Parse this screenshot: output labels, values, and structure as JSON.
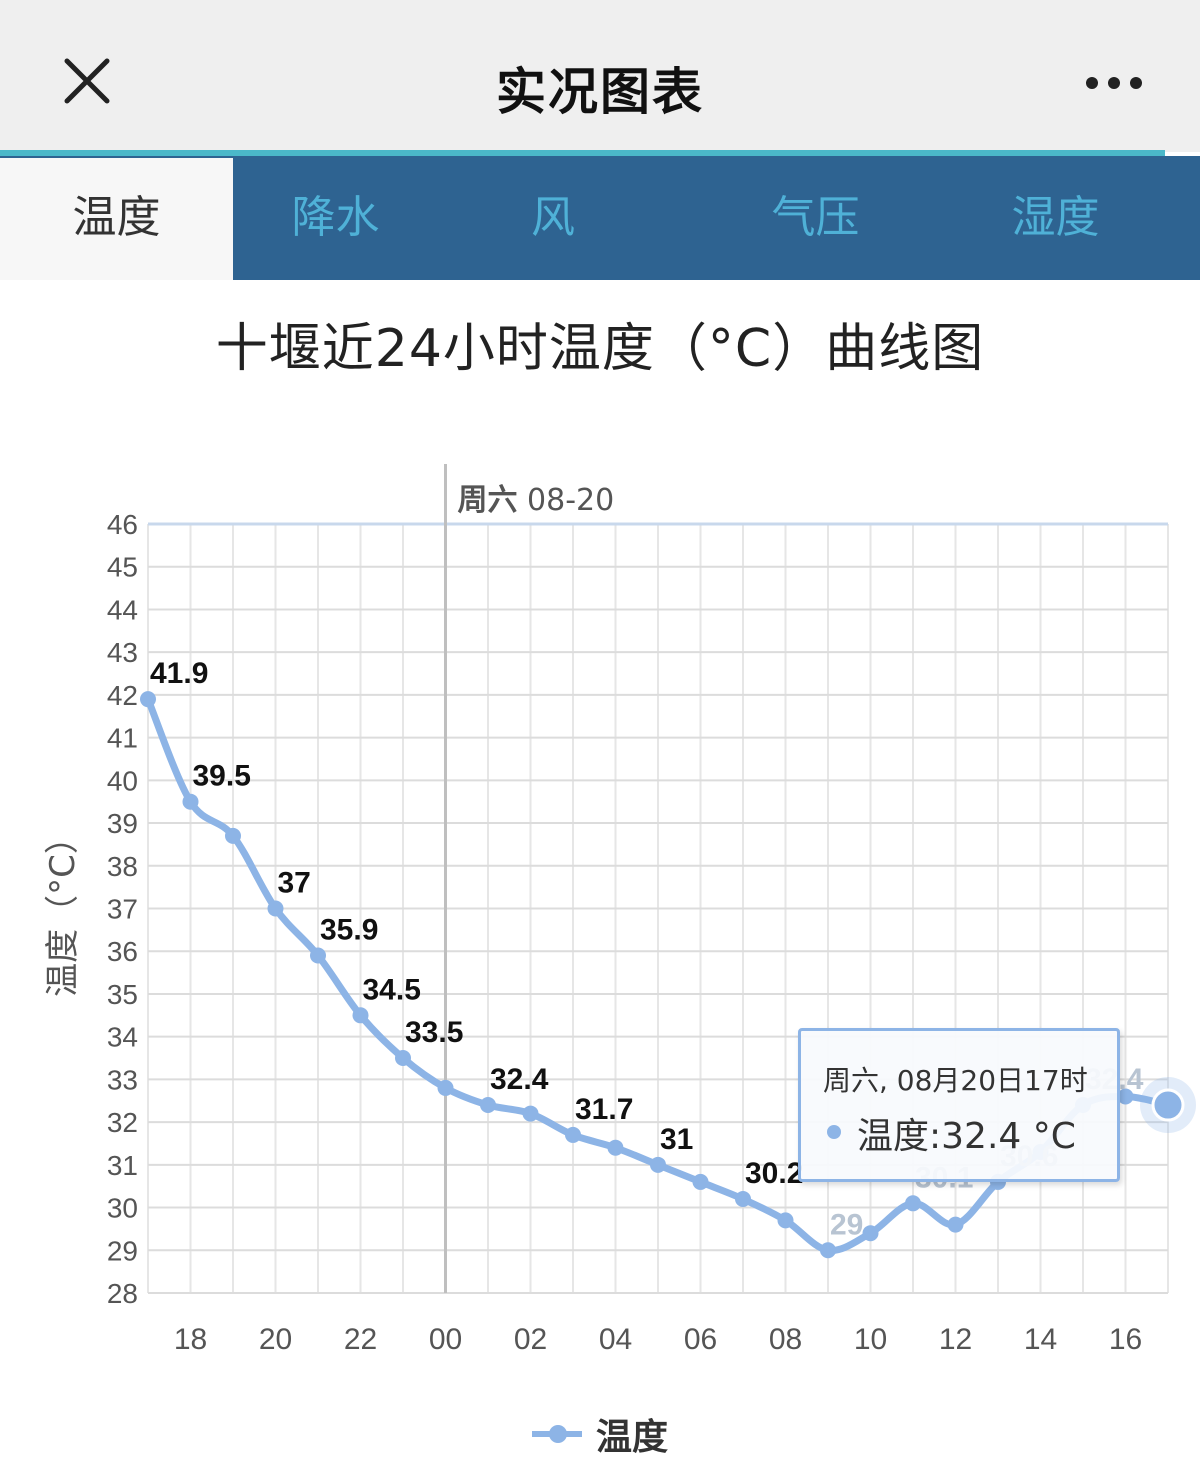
{
  "header": {
    "title": "实况图表",
    "close_icon": "close-icon",
    "more_icon": "more-icon"
  },
  "tabs": [
    {
      "label": "温度",
      "active": true
    },
    {
      "label": "降水",
      "active": false
    },
    {
      "label": "风",
      "active": false
    },
    {
      "label": "气压",
      "active": false
    },
    {
      "label": "湿度",
      "active": false
    }
  ],
  "colors": {
    "series": "#8db4e6",
    "tab_bar": "#2e6391",
    "tab_text": "#4fb1d7",
    "accent_line": "#4bb8c9"
  },
  "tooltip": {
    "header": "周六, 08月20日17时",
    "value": "温度:32.4 °C"
  },
  "legend": {
    "label": "温度"
  },
  "chart_data": {
    "type": "line",
    "title": "十堰近24小时温度（°C）曲线图",
    "ylabel": "温度（°C）",
    "xlabel": "",
    "ylim": [
      28,
      46
    ],
    "yticks": [
      28,
      29,
      30,
      31,
      32,
      33,
      34,
      35,
      36,
      37,
      38,
      39,
      40,
      41,
      42,
      43,
      44,
      45,
      46
    ],
    "x_tick_labels": [
      "18",
      "20",
      "22",
      "00",
      "02",
      "04",
      "06",
      "08",
      "10",
      "12",
      "14",
      "16"
    ],
    "day_marker": {
      "label": "周六 08-20",
      "at": "00"
    },
    "grid": true,
    "legend_position": "bottom",
    "series": [
      {
        "name": "温度",
        "x": [
          "17",
          "18",
          "19",
          "20",
          "21",
          "22",
          "23",
          "00",
          "01",
          "02",
          "03",
          "04",
          "05",
          "06",
          "07",
          "08",
          "09",
          "10",
          "11",
          "12",
          "13",
          "14",
          "15",
          "16",
          "17"
        ],
        "values": [
          41.9,
          39.5,
          38.7,
          37.0,
          35.9,
          34.5,
          33.5,
          32.8,
          32.4,
          32.2,
          31.7,
          31.4,
          31.0,
          30.6,
          30.2,
          29.7,
          29.0,
          29.4,
          30.1,
          29.6,
          30.6,
          31.3,
          32.4,
          32.6,
          32.4
        ],
        "data_labels": [
          "41.9",
          "39.5",
          "",
          "37",
          "35.9",
          "34.5",
          "33.5",
          "",
          "32.4",
          "",
          "31.7",
          "",
          "31",
          "",
          "30.2",
          "",
          "29",
          "",
          "30.1",
          "",
          "30.6",
          "",
          "32.4",
          "",
          ""
        ]
      }
    ]
  }
}
